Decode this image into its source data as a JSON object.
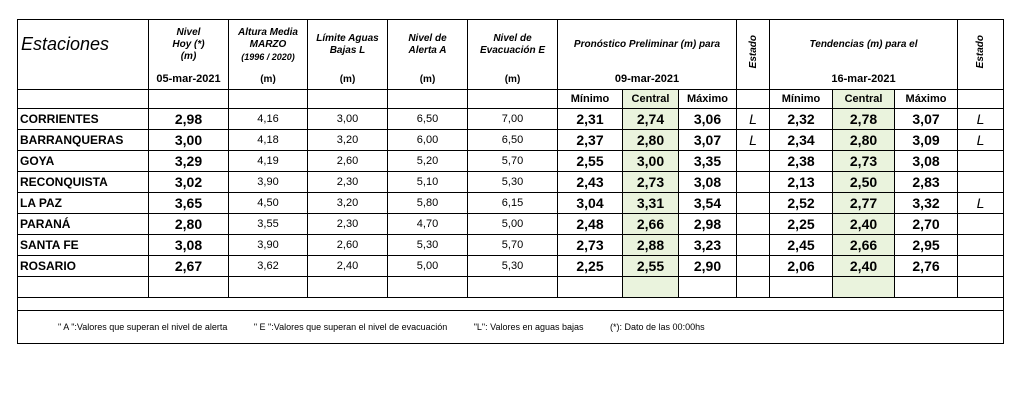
{
  "header": {
    "estaciones": "Estaciones",
    "nivel_hoy": [
      "Nivel",
      "Hoy (*)",
      "(m)"
    ],
    "nivel_hoy_date": "05-mar-2021",
    "altura_media": [
      "Altura Media",
      "MARZO",
      "(1996 / 2020)"
    ],
    "altura_media_unit": "(m)",
    "limite": [
      "Límite Aguas",
      "Bajas L"
    ],
    "limite_unit": "(m)",
    "alerta": [
      "Nivel de",
      "Alerta A"
    ],
    "alerta_unit": "(m)",
    "evacuacion": [
      "Nivel de",
      "Evacuación E"
    ],
    "evacuacion_unit": "(m)",
    "pronostico": "Pronóstico Preliminar (m) para",
    "pronostico_date": "09-mar-2021",
    "estado": "Estado",
    "tendencias": "Tendencias (m) para el",
    "tendencias_date": "16-mar-2021",
    "estado2": "Estado",
    "sub": {
      "minimo": "Mínimo",
      "central": "Central",
      "maximo": "Máximo"
    }
  },
  "rows": [
    {
      "name": "CORRIENTES",
      "hoy": "2,98",
      "media": "4,16",
      "limite": "3,00",
      "alerta": "6,50",
      "evac": "7,00",
      "p_min": "2,31",
      "p_cen": "2,74",
      "p_max": "3,06",
      "p_est": "L",
      "t_min": "2,32",
      "t_cen": "2,78",
      "t_max": "3,07",
      "t_est": "L"
    },
    {
      "name": "BARRANQUERAS",
      "hoy": "3,00",
      "media": "4,18",
      "limite": "3,20",
      "alerta": "6,00",
      "evac": "6,50",
      "p_min": "2,37",
      "p_cen": "2,80",
      "p_max": "3,07",
      "p_est": "L",
      "t_min": "2,34",
      "t_cen": "2,80",
      "t_max": "3,09",
      "t_est": "L"
    },
    {
      "name": "GOYA",
      "hoy": "3,29",
      "media": "4,19",
      "limite": "2,60",
      "alerta": "5,20",
      "evac": "5,70",
      "p_min": "2,55",
      "p_cen": "3,00",
      "p_max": "3,35",
      "p_est": "",
      "t_min": "2,38",
      "t_cen": "2,73",
      "t_max": "3,08",
      "t_est": ""
    },
    {
      "name": "RECONQUISTA",
      "hoy": "3,02",
      "media": "3,90",
      "limite": "2,30",
      "alerta": "5,10",
      "evac": "5,30",
      "p_min": "2,43",
      "p_cen": "2,73",
      "p_max": "3,08",
      "p_est": "",
      "t_min": "2,13",
      "t_cen": "2,50",
      "t_max": "2,83",
      "t_est": ""
    },
    {
      "name": "LA PAZ",
      "hoy": "3,65",
      "media": "4,50",
      "limite": "3,20",
      "alerta": "5,80",
      "evac": "6,15",
      "p_min": "3,04",
      "p_cen": "3,31",
      "p_max": "3,54",
      "p_est": "",
      "t_min": "2,52",
      "t_cen": "2,77",
      "t_max": "3,32",
      "t_est": "L"
    },
    {
      "name": "PARANÁ",
      "hoy": "2,80",
      "media": "3,55",
      "limite": "2,30",
      "alerta": "4,70",
      "evac": "5,00",
      "p_min": "2,48",
      "p_cen": "2,66",
      "p_max": "2,98",
      "p_est": "",
      "t_min": "2,25",
      "t_cen": "2,40",
      "t_max": "2,70",
      "t_est": ""
    },
    {
      "name": "SANTA FE",
      "hoy": "3,08",
      "media": "3,90",
      "limite": "2,60",
      "alerta": "5,30",
      "evac": "5,70",
      "p_min": "2,73",
      "p_cen": "2,88",
      "p_max": "3,23",
      "p_est": "",
      "t_min": "2,45",
      "t_cen": "2,66",
      "t_max": "2,95",
      "t_est": ""
    },
    {
      "name": "ROSARIO",
      "hoy": "2,67",
      "media": "3,62",
      "limite": "2,40",
      "alerta": "5,00",
      "evac": "5,30",
      "p_min": "2,25",
      "p_cen": "2,55",
      "p_max": "2,90",
      "p_est": "",
      "t_min": "2,06",
      "t_cen": "2,40",
      "t_max": "2,76",
      "t_est": ""
    }
  ],
  "footer": {
    "alerta_note": "\" A \":Valores que superan el nivel de alerta",
    "evac_note": "\" E \":Valores que superan el nivel de evacuación",
    "bajas_note": "\"L\": Valores en aguas bajas",
    "dato_note": "(*): Dato de las 00:00hs"
  },
  "colors": {
    "central_bg": "#eaf3dd",
    "border": "#000000"
  }
}
